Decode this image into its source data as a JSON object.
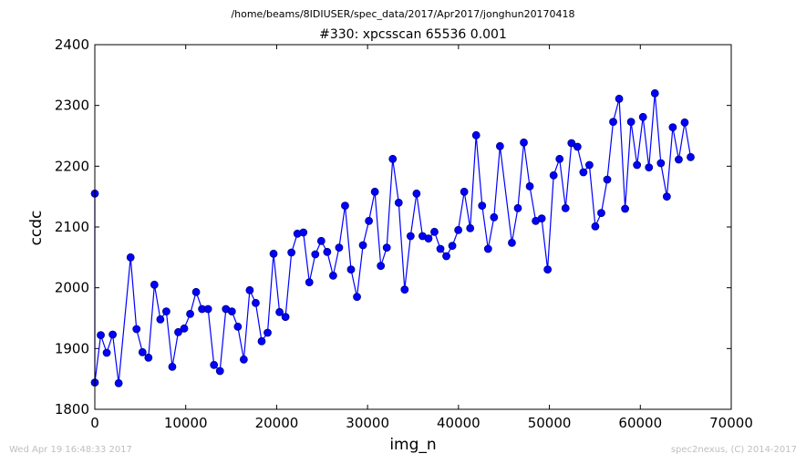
{
  "header": {
    "path": "/home/beams/8IDIUSER/spec_data/2017/Apr2017/jonghun20170418"
  },
  "footer": {
    "timestamp": "Wed Apr 19 16:48:33 2017",
    "credit": "spec2nexus, (C) 2014-2017"
  },
  "colors": {
    "series": "#0000ff",
    "marker_edge": "#000080",
    "axes": "#000000",
    "footer_text": "#bfbfbf"
  },
  "chart_data": {
    "type": "line",
    "title": "#330: xpcsscan 65536 0.001",
    "xlabel": "img_n",
    "ylabel": "ccdc",
    "xlim": [
      0,
      70000
    ],
    "ylim": [
      1800,
      2400
    ],
    "xticks": [
      0,
      10000,
      20000,
      30000,
      40000,
      50000,
      60000,
      70000
    ],
    "yticks": [
      1800,
      1900,
      2000,
      2100,
      2200,
      2300,
      2400
    ],
    "grid": false,
    "legend": "none",
    "marker": "circle",
    "series": [
      {
        "x": [
          0,
          0,
          655,
          1310,
          1966,
          2621,
          3932,
          4587,
          5243,
          5898,
          6554,
          7209,
          7864,
          8520,
          9175,
          9830,
          10486,
          11141,
          11796,
          12452,
          13107,
          13763,
          14418,
          15073,
          15729,
          16384,
          17039,
          17695,
          18350,
          19005,
          19661,
          20316,
          20972,
          21627,
          22282,
          22938,
          23593,
          24248,
          24904,
          25559,
          26214,
          26870,
          27525,
          28180,
          28836,
          29491,
          30147,
          30802,
          31457,
          32113,
          32768,
          33423,
          34079,
          34734,
          35389,
          36045,
          36700,
          37356,
          38011,
          38666,
          39322,
          39977,
          40632,
          41288,
          41943,
          42598,
          43254,
          43909,
          44564,
          45875,
          46531,
          47186,
          47841,
          48497,
          49152,
          49807,
          50463,
          51118,
          51773,
          52429,
          53084,
          53740,
          54395,
          55050,
          55706,
          56361,
          57016,
          57672,
          58327,
          58982,
          59638,
          60293,
          60949,
          61604,
          62259,
          62915,
          63570,
          64225,
          64881,
          65536
        ],
        "y": [
          2155,
          1844,
          1922,
          1893,
          1923,
          1843,
          2050,
          1932,
          1894,
          1885,
          2005,
          1948,
          1961,
          1870,
          1927,
          1933,
          1957,
          1993,
          1965,
          1965,
          1873,
          1863,
          1965,
          1961,
          1936,
          1882,
          1996,
          1975,
          1912,
          1926,
          2056,
          1960,
          1952,
          2058,
          2089,
          2091,
          2009,
          2055,
          2077,
          2059,
          2020,
          2066,
          2135,
          2030,
          1985,
          2070,
          2110,
          2158,
          2036,
          2066,
          2212,
          2140,
          1997,
          2085,
          2155,
          2085,
          2081,
          2092,
          2064,
          2052,
          2069,
          2095,
          2158,
          2098,
          2251,
          2135,
          2064,
          2116,
          2233,
          2074,
          2131,
          2239,
          2167,
          2110,
          2114,
          2030,
          2185,
          2212,
          2131,
          2238,
          2232,
          2190,
          2202,
          2101,
          2123,
          2178,
          2273,
          2311,
          2130,
          2273,
          2202,
          2281,
          2198,
          2320,
          2205,
          2150,
          2264,
          2211,
          2272,
          2215
        ]
      }
    ]
  }
}
